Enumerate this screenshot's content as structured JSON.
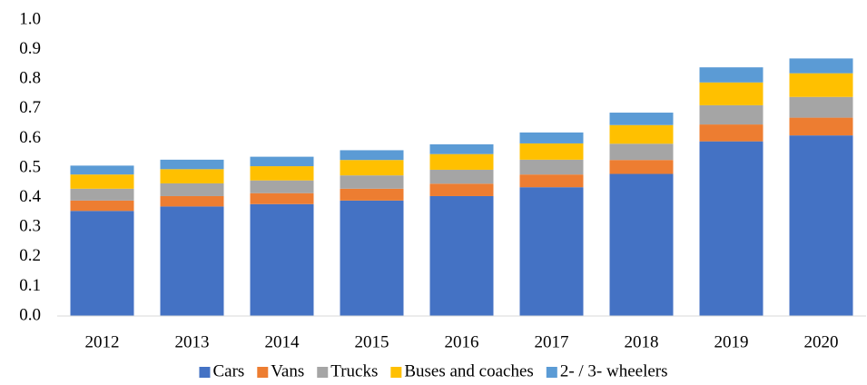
{
  "chart_data": {
    "type": "stacked_bar",
    "categories": [
      "2012",
      "2013",
      "2014",
      "2015",
      "2016",
      "2017",
      "2018",
      "2019",
      "2020"
    ],
    "series": [
      {
        "name": "Cars",
        "color": "#4472c4",
        "values": [
          0.355,
          0.37,
          0.378,
          0.39,
          0.405,
          0.435,
          0.48,
          0.59,
          0.61
        ]
      },
      {
        "name": "Vans",
        "color": "#ed7d31",
        "values": [
          0.035,
          0.035,
          0.037,
          0.04,
          0.042,
          0.043,
          0.047,
          0.057,
          0.06
        ]
      },
      {
        "name": "Trucks",
        "color": "#a5a5a5",
        "values": [
          0.04,
          0.043,
          0.043,
          0.045,
          0.047,
          0.05,
          0.055,
          0.065,
          0.07
        ]
      },
      {
        "name": "Buses and coaches",
        "color": "#ffc000",
        "values": [
          0.048,
          0.048,
          0.048,
          0.052,
          0.053,
          0.055,
          0.063,
          0.077,
          0.08
        ]
      },
      {
        "name": "2- / 3- wheelers",
        "color": "#5b9bd5",
        "values": [
          0.03,
          0.032,
          0.032,
          0.033,
          0.033,
          0.037,
          0.042,
          0.051,
          0.05
        ]
      }
    ],
    "ylim": [
      0,
      1
    ],
    "yticks": [
      {
        "value": 0,
        "label": "0.0"
      },
      0.1,
      0.2,
      0.3,
      0.4,
      0.5,
      0.6,
      0.7,
      0.8,
      0.9,
      {
        "value": 1,
        "label": "1.0"
      }
    ],
    "grid": false,
    "legend": "bottom"
  }
}
